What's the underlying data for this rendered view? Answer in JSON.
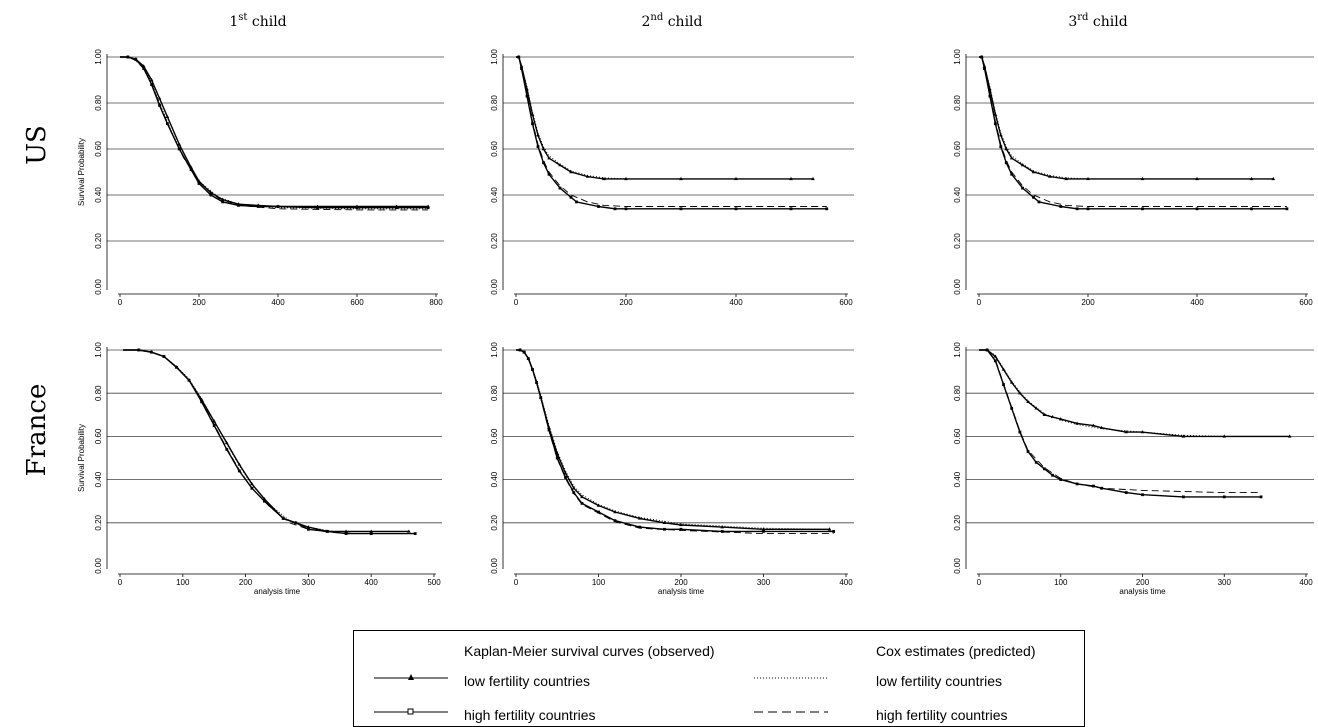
{
  "column_titles": [
    {
      "base": "1",
      "sup": "st",
      "rest": " child"
    },
    {
      "base": "2",
      "sup": "nd",
      "rest": " child"
    },
    {
      "base": "3",
      "sup": "rd",
      "rest": " child"
    }
  ],
  "row_titles": [
    "US",
    "France"
  ],
  "legend": {
    "km_header": "Kaplan-Meier survival curves (observed)",
    "cox_header": "Cox estimates (predicted)",
    "km_low": "low fertility countries",
    "km_high": "high fertility countries",
    "cox_low": "low fertility countries",
    "cox_high": "high fertility countries"
  },
  "chart_data": [
    {
      "type": "line",
      "row": "US",
      "column": "1st child",
      "ylabel": "Survival Probability",
      "xlabel": "",
      "xlim": [
        0,
        800
      ],
      "ylim": [
        0,
        1
      ],
      "xticks": [
        0,
        200,
        400,
        600,
        800
      ],
      "yticks": [
        "0.00",
        "0.20",
        "0.40",
        "0.60",
        "0.80",
        "1.00"
      ],
      "grid": true,
      "series": [
        {
          "x": [
            0,
            20,
            40,
            60,
            80,
            100,
            120,
            150,
            180,
            200,
            230,
            260,
            300,
            350,
            400,
            500,
            600,
            700,
            780
          ],
          "y": [
            1,
            1,
            0.99,
            0.96,
            0.9,
            0.82,
            0.74,
            0.62,
            0.52,
            0.46,
            0.41,
            0.38,
            0.36,
            0.355,
            0.35,
            0.35,
            0.35,
            0.35,
            0.35
          ]
        },
        {
          "x": [
            0,
            20,
            40,
            60,
            80,
            100,
            120,
            150,
            180,
            200,
            230,
            260,
            300,
            350,
            400,
            500,
            600,
            700,
            780
          ],
          "y": [
            1,
            1,
            0.99,
            0.95,
            0.88,
            0.79,
            0.71,
            0.6,
            0.51,
            0.45,
            0.4,
            0.37,
            0.355,
            0.35,
            0.35,
            0.345,
            0.345,
            0.345,
            0.345
          ]
        },
        {
          "x": [
            0,
            20,
            40,
            60,
            80,
            100,
            130,
            160,
            200,
            250,
            300,
            400,
            600,
            780
          ],
          "y": [
            1,
            1,
            0.985,
            0.955,
            0.89,
            0.8,
            0.68,
            0.57,
            0.46,
            0.39,
            0.36,
            0.345,
            0.34,
            0.34
          ]
        },
        {
          "x": [
            0,
            20,
            40,
            60,
            80,
            100,
            130,
            160,
            200,
            250,
            300,
            400,
            600,
            780
          ],
          "y": [
            1,
            1,
            0.985,
            0.95,
            0.885,
            0.795,
            0.675,
            0.565,
            0.455,
            0.385,
            0.355,
            0.34,
            0.335,
            0.335
          ]
        }
      ]
    },
    {
      "type": "line",
      "row": "US",
      "column": "2nd child",
      "ylabel": "",
      "xlabel": "",
      "xlim": [
        0,
        600
      ],
      "ylim": [
        0,
        1
      ],
      "xticks": [
        0,
        200,
        400,
        600
      ],
      "yticks": [
        "0.00",
        "0.20",
        "0.40",
        "0.60",
        "0.80",
        "1.00"
      ],
      "grid": true,
      "series": [
        {
          "x": [
            0,
            5,
            10,
            20,
            30,
            40,
            50,
            60,
            80,
            100,
            130,
            160,
            200,
            300,
            400,
            500,
            540
          ],
          "y": [
            1,
            1,
            0.96,
            0.86,
            0.75,
            0.66,
            0.6,
            0.56,
            0.53,
            0.5,
            0.48,
            0.47,
            0.47,
            0.47,
            0.47,
            0.47,
            0.47
          ]
        },
        {
          "x": [
            0,
            5,
            10,
            20,
            30,
            40,
            50,
            60,
            80,
            100,
            110,
            150,
            180,
            200,
            300,
            400,
            500,
            565
          ],
          "y": [
            1,
            1,
            0.95,
            0.83,
            0.71,
            0.61,
            0.54,
            0.49,
            0.43,
            0.39,
            0.37,
            0.35,
            0.34,
            0.34,
            0.34,
            0.34,
            0.34,
            0.34
          ]
        },
        {
          "x": [
            0,
            5,
            10,
            20,
            30,
            40,
            50,
            60,
            80,
            100,
            130,
            160,
            200,
            300,
            400,
            540
          ],
          "y": [
            1,
            1,
            0.965,
            0.87,
            0.76,
            0.67,
            0.61,
            0.57,
            0.535,
            0.505,
            0.485,
            0.475,
            0.47,
            0.47,
            0.47,
            0.47
          ]
        },
        {
          "x": [
            0,
            5,
            10,
            20,
            30,
            40,
            50,
            60,
            80,
            100,
            130,
            160,
            200,
            300,
            400,
            565
          ],
          "y": [
            1,
            1,
            0.955,
            0.84,
            0.72,
            0.62,
            0.55,
            0.5,
            0.44,
            0.4,
            0.37,
            0.355,
            0.35,
            0.35,
            0.35,
            0.35
          ]
        }
      ]
    },
    {
      "type": "line",
      "row": "US",
      "column": "3rd child",
      "ylabel": "",
      "xlabel": "",
      "xlim": [
        0,
        600
      ],
      "ylim": [
        0,
        1
      ],
      "xticks": [
        0,
        200,
        400,
        600
      ],
      "yticks": [
        "0.00",
        "0.20",
        "0.40",
        "0.60",
        "0.80",
        "1.00"
      ],
      "grid": true,
      "series": [
        {
          "x": [
            0,
            5,
            10,
            20,
            30,
            40,
            50,
            60,
            80,
            100,
            130,
            160,
            200,
            300,
            400,
            500,
            540
          ],
          "y": [
            1,
            1,
            0.96,
            0.86,
            0.75,
            0.66,
            0.6,
            0.56,
            0.53,
            0.5,
            0.48,
            0.47,
            0.47,
            0.47,
            0.47,
            0.47,
            0.47
          ]
        },
        {
          "x": [
            0,
            5,
            10,
            20,
            30,
            40,
            50,
            60,
            80,
            100,
            110,
            150,
            180,
            200,
            300,
            400,
            500,
            565
          ],
          "y": [
            1,
            1,
            0.95,
            0.83,
            0.71,
            0.61,
            0.54,
            0.49,
            0.43,
            0.39,
            0.37,
            0.35,
            0.34,
            0.34,
            0.34,
            0.34,
            0.34,
            0.34
          ]
        },
        {
          "x": [
            0,
            5,
            10,
            20,
            30,
            40,
            50,
            60,
            80,
            100,
            130,
            160,
            200,
            300,
            400,
            540
          ],
          "y": [
            1,
            1,
            0.965,
            0.87,
            0.76,
            0.67,
            0.61,
            0.57,
            0.535,
            0.505,
            0.485,
            0.475,
            0.47,
            0.47,
            0.47,
            0.47
          ]
        },
        {
          "x": [
            0,
            5,
            10,
            20,
            30,
            40,
            50,
            60,
            80,
            100,
            130,
            160,
            200,
            300,
            400,
            565
          ],
          "y": [
            1,
            1,
            0.955,
            0.84,
            0.72,
            0.62,
            0.55,
            0.5,
            0.44,
            0.4,
            0.37,
            0.355,
            0.35,
            0.35,
            0.35,
            0.35
          ]
        }
      ]
    },
    {
      "type": "line",
      "row": "France",
      "column": "1st child",
      "ylabel": "Survival Probability",
      "xlabel": "analysis time",
      "xlim": [
        0,
        500
      ],
      "ylim": [
        0,
        1
      ],
      "xticks": [
        0,
        100,
        200,
        300,
        400,
        500
      ],
      "yticks": [
        "0.00",
        "0.20",
        "0.40",
        "0.60",
        "0.80",
        "1.00"
      ],
      "grid": true,
      "series": [
        {
          "x": [
            5,
            30,
            50,
            70,
            90,
            110,
            130,
            150,
            170,
            190,
            210,
            230,
            260,
            280,
            300,
            330,
            360,
            400,
            460
          ],
          "y": [
            1,
            1,
            0.99,
            0.97,
            0.92,
            0.86,
            0.77,
            0.67,
            0.57,
            0.47,
            0.38,
            0.31,
            0.22,
            0.2,
            0.18,
            0.16,
            0.16,
            0.16,
            0.16
          ]
        },
        {
          "x": [
            5,
            30,
            50,
            70,
            90,
            110,
            130,
            150,
            170,
            190,
            210,
            230,
            260,
            280,
            300,
            330,
            360,
            400,
            470
          ],
          "y": [
            1,
            1,
            0.99,
            0.97,
            0.92,
            0.86,
            0.76,
            0.65,
            0.54,
            0.44,
            0.36,
            0.3,
            0.22,
            0.2,
            0.17,
            0.16,
            0.15,
            0.15,
            0.15
          ]
        },
        {
          "x": [
            5,
            30,
            50,
            70,
            90,
            110,
            130,
            150,
            170,
            190,
            210,
            240,
            270,
            300,
            340,
            380,
            460
          ],
          "y": [
            1,
            1,
            0.99,
            0.97,
            0.925,
            0.865,
            0.775,
            0.67,
            0.565,
            0.465,
            0.375,
            0.28,
            0.21,
            0.18,
            0.16,
            0.16,
            0.16
          ]
        },
        {
          "x": [
            5,
            30,
            50,
            70,
            90,
            110,
            130,
            150,
            170,
            190,
            210,
            240,
            270,
            300,
            340,
            380,
            470
          ],
          "y": [
            1,
            1,
            0.99,
            0.97,
            0.92,
            0.86,
            0.765,
            0.655,
            0.545,
            0.445,
            0.36,
            0.27,
            0.2,
            0.17,
            0.155,
            0.15,
            0.15
          ]
        }
      ]
    },
    {
      "type": "line",
      "row": "France",
      "column": "2nd child",
      "ylabel": "",
      "xlabel": "analysis time",
      "xlim": [
        0,
        400
      ],
      "ylim": [
        0,
        1
      ],
      "xticks": [
        0,
        100,
        200,
        300,
        400
      ],
      "yticks": [
        "0.00",
        "0.20",
        "0.40",
        "0.60",
        "0.80",
        "1.00"
      ],
      "grid": true,
      "series": [
        {
          "x": [
            0,
            5,
            10,
            15,
            20,
            25,
            30,
            40,
            50,
            60,
            70,
            80,
            100,
            120,
            150,
            180,
            200,
            250,
            300,
            380
          ],
          "y": [
            1,
            1,
            0.99,
            0.96,
            0.91,
            0.85,
            0.78,
            0.64,
            0.52,
            0.43,
            0.36,
            0.32,
            0.28,
            0.25,
            0.22,
            0.2,
            0.19,
            0.18,
            0.17,
            0.17
          ]
        },
        {
          "x": [
            0,
            5,
            10,
            15,
            20,
            25,
            30,
            40,
            50,
            60,
            70,
            80,
            100,
            120,
            150,
            180,
            200,
            250,
            300,
            385
          ],
          "y": [
            1,
            1,
            0.99,
            0.96,
            0.91,
            0.85,
            0.78,
            0.63,
            0.5,
            0.41,
            0.34,
            0.29,
            0.25,
            0.21,
            0.18,
            0.17,
            0.17,
            0.16,
            0.16,
            0.16
          ]
        },
        {
          "x": [
            0,
            5,
            10,
            15,
            20,
            25,
            30,
            40,
            50,
            60,
            70,
            80,
            100,
            120,
            150,
            200,
            300,
            380
          ],
          "y": [
            1,
            1,
            0.99,
            0.965,
            0.915,
            0.855,
            0.79,
            0.65,
            0.53,
            0.44,
            0.37,
            0.33,
            0.285,
            0.255,
            0.225,
            0.195,
            0.175,
            0.17
          ]
        },
        {
          "x": [
            0,
            5,
            10,
            15,
            20,
            25,
            30,
            40,
            50,
            60,
            70,
            80,
            100,
            120,
            150,
            200,
            300,
            385
          ],
          "y": [
            1,
            1,
            0.99,
            0.96,
            0.905,
            0.845,
            0.775,
            0.625,
            0.495,
            0.405,
            0.335,
            0.285,
            0.245,
            0.205,
            0.175,
            0.165,
            0.15,
            0.15
          ]
        }
      ]
    },
    {
      "type": "line",
      "row": "France",
      "column": "3rd child",
      "ylabel": "",
      "xlabel": "analysis time",
      "xlim": [
        0,
        400
      ],
      "ylim": [
        0,
        1
      ],
      "xticks": [
        0,
        100,
        200,
        300,
        400
      ],
      "yticks": [
        "0.00",
        "0.20",
        "0.40",
        "0.60",
        "0.80",
        "1.00"
      ],
      "grid": true,
      "series": [
        {
          "x": [
            0,
            10,
            20,
            30,
            40,
            50,
            60,
            70,
            80,
            90,
            100,
            120,
            140,
            150,
            180,
            200,
            250,
            300,
            380
          ],
          "y": [
            1,
            1,
            0.97,
            0.91,
            0.85,
            0.8,
            0.76,
            0.73,
            0.7,
            0.69,
            0.68,
            0.66,
            0.65,
            0.64,
            0.62,
            0.62,
            0.6,
            0.6,
            0.6
          ]
        },
        {
          "x": [
            0,
            10,
            20,
            30,
            40,
            50,
            60,
            70,
            80,
            90,
            100,
            120,
            140,
            150,
            180,
            200,
            250,
            300,
            345
          ],
          "y": [
            1,
            1,
            0.95,
            0.84,
            0.73,
            0.62,
            0.53,
            0.48,
            0.45,
            0.42,
            0.4,
            0.38,
            0.37,
            0.36,
            0.34,
            0.33,
            0.32,
            0.32,
            0.32
          ]
        },
        {
          "x": [
            0,
            10,
            20,
            30,
            40,
            50,
            60,
            80,
            100,
            120,
            150,
            200,
            250,
            300,
            380
          ],
          "y": [
            1,
            1,
            0.975,
            0.915,
            0.855,
            0.805,
            0.765,
            0.705,
            0.675,
            0.655,
            0.635,
            0.62,
            0.605,
            0.6,
            0.6
          ]
        },
        {
          "x": [
            0,
            10,
            20,
            30,
            40,
            50,
            60,
            80,
            100,
            120,
            150,
            200,
            250,
            300,
            345
          ],
          "y": [
            1,
            1,
            0.955,
            0.845,
            0.735,
            0.625,
            0.535,
            0.455,
            0.405,
            0.38,
            0.36,
            0.35,
            0.345,
            0.34,
            0.34
          ]
        }
      ]
    }
  ]
}
